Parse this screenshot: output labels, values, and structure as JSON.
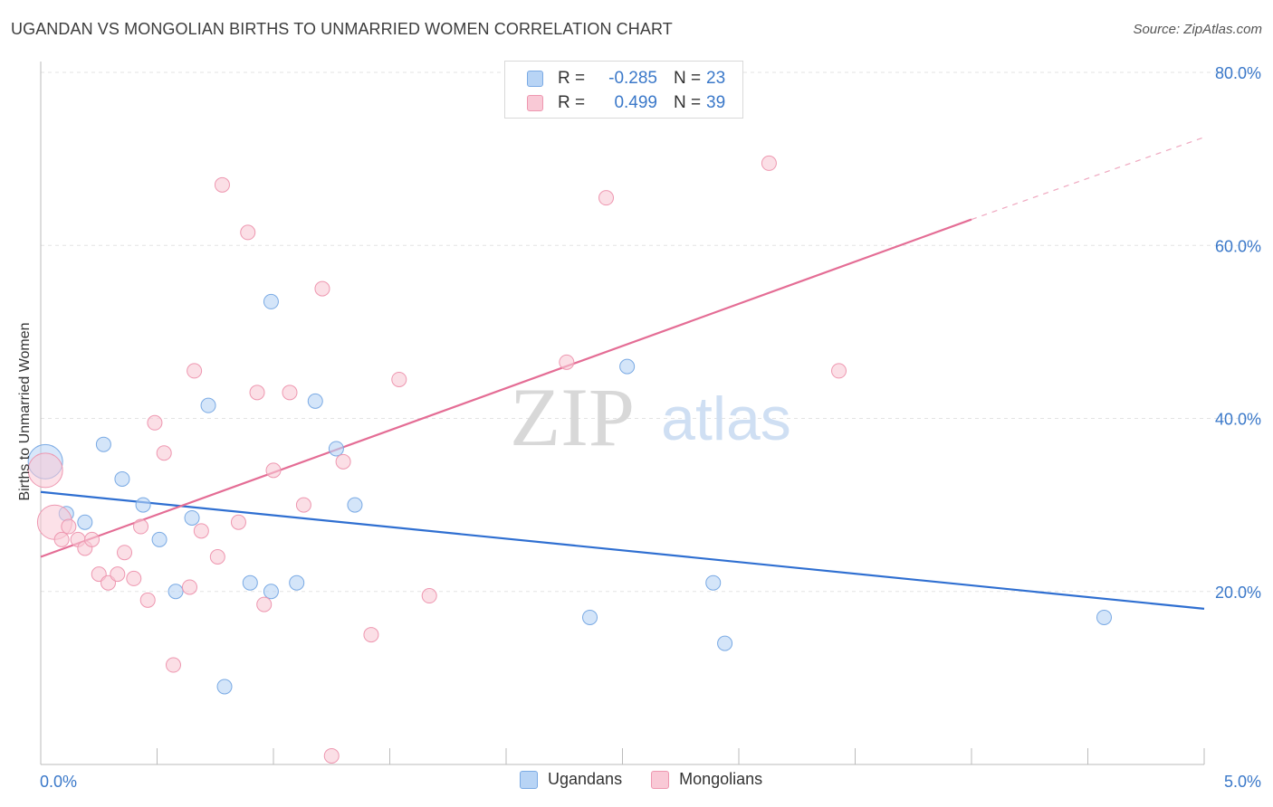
{
  "title": "UGANDAN VS MONGOLIAN BIRTHS TO UNMARRIED WOMEN CORRELATION CHART",
  "source": "Source: ZipAtlas.com",
  "watermark": {
    "zip": "ZIP",
    "atlas": "atlas"
  },
  "legend": {
    "rows": [
      {
        "r_label": "R =",
        "r_value": "-0.285",
        "n_label": "N =",
        "n_value": "23",
        "fill": "#b8d4f5",
        "stroke": "#7aaae4"
      },
      {
        "r_label": "R =",
        "r_value": "0.499",
        "n_label": "N =",
        "n_value": "39",
        "fill": "#f9c9d6",
        "stroke": "#ee97b0"
      }
    ]
  },
  "bottom_legend": [
    {
      "label": "Ugandans",
      "fill": "#b8d4f5",
      "stroke": "#7aaae4"
    },
    {
      "label": "Mongolians",
      "fill": "#f9c9d6",
      "stroke": "#ee97b0"
    }
  ],
  "colors": {
    "ugandans_line": "#2f6fd1",
    "mongolians_line": "#e46d95",
    "tick_text": "#3a78c9",
    "grid": "#e3e3e3"
  },
  "chart_data": {
    "type": "scatter",
    "title": "UGANDAN VS MONGOLIAN BIRTHS TO UNMARRIED WOMEN CORRELATION CHART",
    "xlabel": "",
    "ylabel": "Births to Unmarried Women",
    "xlim": [
      0,
      5
    ],
    "ylim": [
      0,
      80
    ],
    "x_tick_labels": [
      "0.0%",
      "5.0%"
    ],
    "y_ticks": [
      20,
      40,
      60,
      80
    ],
    "y_tick_labels": [
      "20.0%",
      "40.0%",
      "60.0%",
      "80.0%"
    ],
    "grid": true,
    "legend_position": "top-center",
    "series": [
      {
        "name": "Ugandans",
        "color": "#7aaae4",
        "points": [
          {
            "x": 0.02,
            "y": 35.0,
            "large": true
          },
          {
            "x": 0.11,
            "y": 29.0
          },
          {
            "x": 0.19,
            "y": 28.0
          },
          {
            "x": 0.27,
            "y": 37.0
          },
          {
            "x": 0.35,
            "y": 33.0
          },
          {
            "x": 0.44,
            "y": 30.0
          },
          {
            "x": 0.51,
            "y": 26.0
          },
          {
            "x": 0.58,
            "y": 20.0
          },
          {
            "x": 0.65,
            "y": 28.5
          },
          {
            "x": 0.72,
            "y": 41.5
          },
          {
            "x": 0.79,
            "y": 9.0
          },
          {
            "x": 0.9,
            "y": 21.0
          },
          {
            "x": 0.99,
            "y": 53.5
          },
          {
            "x": 0.99,
            "y": 20.0
          },
          {
            "x": 1.1,
            "y": 21.0
          },
          {
            "x": 1.18,
            "y": 42.0
          },
          {
            "x": 1.27,
            "y": 36.5
          },
          {
            "x": 1.35,
            "y": 30.0
          },
          {
            "x": 2.36,
            "y": 17.0
          },
          {
            "x": 2.52,
            "y": 46.0
          },
          {
            "x": 2.89,
            "y": 21.0
          },
          {
            "x": 2.94,
            "y": 14.0
          },
          {
            "x": 4.57,
            "y": 17.0
          }
        ],
        "trend": {
          "x": [
            0,
            5
          ],
          "y": [
            31.5,
            18.0
          ]
        }
      },
      {
        "name": "Mongolians",
        "color": "#ee97b0",
        "points": [
          {
            "x": 0.02,
            "y": 34.0,
            "large": true
          },
          {
            "x": 0.06,
            "y": 28.0,
            "large": true
          },
          {
            "x": 0.09,
            "y": 26.0
          },
          {
            "x": 0.12,
            "y": 27.5
          },
          {
            "x": 0.16,
            "y": 26.0
          },
          {
            "x": 0.19,
            "y": 25.0
          },
          {
            "x": 0.22,
            "y": 26.0
          },
          {
            "x": 0.25,
            "y": 22.0
          },
          {
            "x": 0.29,
            "y": 21.0
          },
          {
            "x": 0.33,
            "y": 22.0
          },
          {
            "x": 0.36,
            "y": 24.5
          },
          {
            "x": 0.4,
            "y": 21.5
          },
          {
            "x": 0.43,
            "y": 27.5
          },
          {
            "x": 0.46,
            "y": 19.0
          },
          {
            "x": 0.49,
            "y": 39.5
          },
          {
            "x": 0.53,
            "y": 36.0
          },
          {
            "x": 0.57,
            "y": 11.5
          },
          {
            "x": 0.64,
            "y": 20.5
          },
          {
            "x": 0.66,
            "y": 45.5
          },
          {
            "x": 0.69,
            "y": 27.0
          },
          {
            "x": 0.76,
            "y": 24.0
          },
          {
            "x": 0.78,
            "y": 67.0
          },
          {
            "x": 0.85,
            "y": 28.0
          },
          {
            "x": 0.89,
            "y": 61.5
          },
          {
            "x": 0.93,
            "y": 43.0
          },
          {
            "x": 0.96,
            "y": 18.5
          },
          {
            "x": 1.0,
            "y": 34.0
          },
          {
            "x": 1.07,
            "y": 43.0
          },
          {
            "x": 1.13,
            "y": 30.0
          },
          {
            "x": 1.21,
            "y": 55.0
          },
          {
            "x": 1.25,
            "y": 1.0
          },
          {
            "x": 1.3,
            "y": 35.0
          },
          {
            "x": 1.42,
            "y": 15.0
          },
          {
            "x": 1.54,
            "y": 44.5
          },
          {
            "x": 1.67,
            "y": 19.5
          },
          {
            "x": 2.26,
            "y": 46.5
          },
          {
            "x": 2.43,
            "y": 65.5
          },
          {
            "x": 3.13,
            "y": 69.5
          },
          {
            "x": 3.43,
            "y": 45.5
          }
        ],
        "trend": {
          "x": [
            0,
            4.0
          ],
          "y": [
            24.0,
            63.0
          ],
          "dashed_to": [
            5.0,
            72.5
          ]
        }
      }
    ]
  }
}
